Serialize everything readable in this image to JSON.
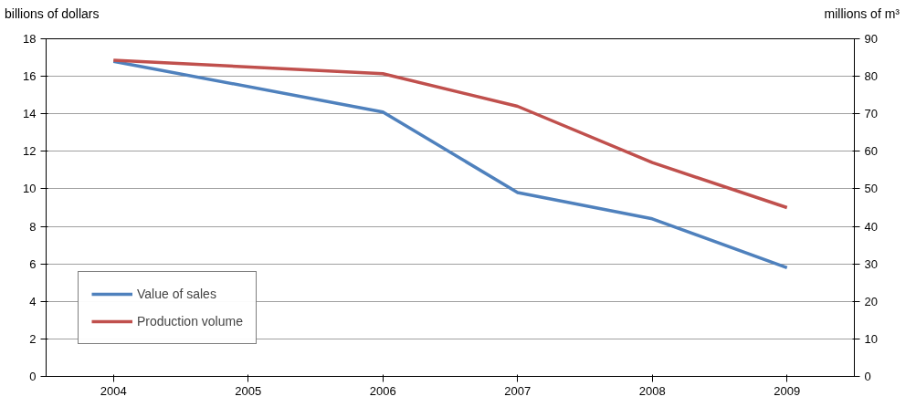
{
  "chart_data": {
    "type": "line",
    "xlabel": null,
    "ylabel": "billions of dollars",
    "y2label": "millions of m³",
    "x": [
      2004,
      2006,
      2007,
      2008,
      2009
    ],
    "xlim": [
      2003.5,
      2009.5
    ],
    "xticks": [
      2004,
      2005,
      2006,
      2007,
      2008,
      2009
    ],
    "ylim": [
      0,
      18
    ],
    "yticks": [
      0,
      2,
      4,
      6,
      8,
      10,
      12,
      14,
      16,
      18
    ],
    "y2lim": [
      0,
      90
    ],
    "y2ticks": [
      0,
      10,
      20,
      30,
      40,
      50,
      60,
      70,
      80,
      90
    ],
    "grid": "y",
    "legend": "bottom left",
    "line_style": "solid",
    "series": [
      {
        "name": "Value of sales",
        "color": "#4f81bd",
        "values": [
          16.8,
          14.1,
          9.8,
          8.4,
          5.8
        ]
      },
      {
        "name": "Production volume",
        "color": "#c0504d",
        "axis": "y2",
        "values": [
          84.3,
          80.7,
          72,
          57,
          45
        ]
      }
    ]
  }
}
